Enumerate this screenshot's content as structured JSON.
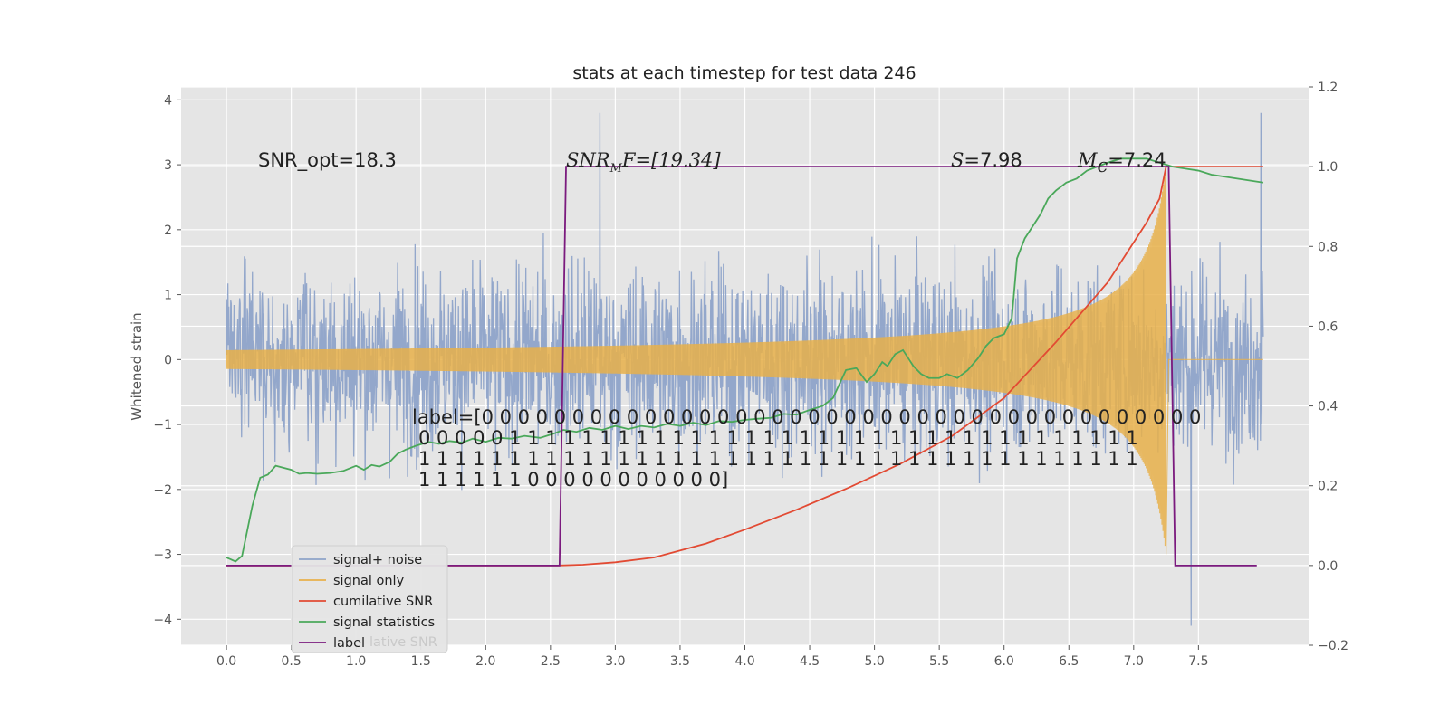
{
  "chart_data": {
    "type": "line",
    "title": "stats at each timestep for test data 246",
    "ylabel": "Whitened strain",
    "xlim": [
      -0.35,
      8.35
    ],
    "ylim_left": [
      -4.4,
      4.2
    ],
    "ylim_right": [
      -0.2,
      1.2
    ],
    "x_ticks": [
      "0.0",
      "0.5",
      "1.0",
      "1.5",
      "2.0",
      "2.5",
      "3.0",
      "3.5",
      "4.0",
      "4.5",
      "5.0",
      "5.5",
      "6.0",
      "6.5",
      "7.0",
      "7.5"
    ],
    "y_ticks_left": [
      "4",
      "3",
      "2",
      "1",
      "0",
      "−1",
      "−2",
      "−3",
      "−4"
    ],
    "y_ticks_right": [
      "1.2",
      "1.0",
      "0.8",
      "0.6",
      "0.4",
      "0.2",
      "0.0",
      "−0.2"
    ],
    "grid": true,
    "legend_position": "lower-left",
    "annotations": {
      "snr_opt": "SNR_opt=18.3",
      "snr_mf": "SNR",
      "snr_mf_sub": "M",
      "snr_mf_rest": "F=[19.34]",
      "s_label": "S",
      "s_value": "=7.98",
      "mc_label": "M",
      "mc_sub": "c",
      "mc_value": "=7.24",
      "label_lines": [
        "label=[0 0 0 0 0 0 0 0 0 0 0 0 0 0 0 0 0 0 0 0 0 0 0 0 0 0 0 0 0 0 0 0 0 0 0 0 0 0 0 0",
        "0 0 0 0 0 1 1 1 1 1 1 1 1 1 1 1 1 1 1 1 1 1 1 1 1 1 1 1 1 1 1 1 1 1 1 1 1 1 1 1",
        "1 1 1 1 1 1 1 1 1 1 1 1 1 1 1 1 1 1 1 1 1 1 1 1 1 1 1 1 1 1 1 1 1 1 1 1 1 1 1 1",
        "1 1 1 1 1 1 0 0 0 0 0 0 0 0 0 0 0]"
      ],
      "legend_ghost": "lative SNR"
    },
    "series": [
      {
        "name": "signal+ noise",
        "color": "#8ea3c9",
        "kind": "noise",
        "x_range": [
          0.0,
          8.0
        ],
        "amplitude": 1.0,
        "peak_max": 3.8,
        "peak_min": -4.1
      },
      {
        "name": "signal only",
        "color": "#e8b04a",
        "kind": "chirp",
        "x_range": [
          0.0,
          7.25
        ],
        "peak_amplitude": 3.0
      },
      {
        "name": "cumilative SNR",
        "color": "#e24a33",
        "axis": "right",
        "x": [
          0.0,
          2.55,
          2.75,
          3.0,
          3.3,
          3.7,
          4.0,
          4.4,
          4.8,
          5.2,
          5.6,
          6.0,
          6.4,
          6.8,
          7.0,
          7.1,
          7.2,
          7.25,
          7.3,
          8.0
        ],
        "y": [
          0.0,
          0.0,
          0.002,
          0.008,
          0.02,
          0.055,
          0.09,
          0.14,
          0.195,
          0.255,
          0.325,
          0.42,
          0.56,
          0.71,
          0.81,
          0.86,
          0.92,
          1.0,
          1.0,
          1.0
        ]
      },
      {
        "name": "signal statistics",
        "color": "#4aa85a",
        "axis": "right",
        "x": [
          0.0,
          0.07,
          0.12,
          0.2,
          0.26,
          0.32,
          0.38,
          0.44,
          0.5,
          0.56,
          0.62,
          0.7,
          0.8,
          0.9,
          1.0,
          1.06,
          1.12,
          1.18,
          1.26,
          1.32,
          1.38,
          1.46,
          1.56,
          1.64,
          1.72,
          1.82,
          1.9,
          2.0,
          2.1,
          2.2,
          2.3,
          2.42,
          2.52,
          2.6,
          2.7,
          2.8,
          2.9,
          3.0,
          3.1,
          3.2,
          3.3,
          3.4,
          3.5,
          3.6,
          3.7,
          3.8,
          3.9,
          4.0,
          4.1,
          4.2,
          4.3,
          4.4,
          4.5,
          4.6,
          4.68,
          4.78,
          4.86,
          4.94,
          5.0,
          5.06,
          5.1,
          5.16,
          5.22,
          5.26,
          5.3,
          5.36,
          5.42,
          5.5,
          5.56,
          5.64,
          5.72,
          5.8,
          5.86,
          5.92,
          6.0,
          6.06,
          6.1,
          6.16,
          6.22,
          6.28,
          6.34,
          6.4,
          6.48,
          6.56,
          6.64,
          6.72,
          6.8,
          6.9,
          7.0,
          7.1,
          7.2,
          7.3,
          7.4,
          7.5,
          7.6,
          7.8,
          8.0
        ],
        "y": [
          0.02,
          0.01,
          0.024,
          0.15,
          0.22,
          0.228,
          0.25,
          0.245,
          0.24,
          0.23,
          0.232,
          0.23,
          0.232,
          0.237,
          0.25,
          0.24,
          0.252,
          0.248,
          0.26,
          0.28,
          0.29,
          0.3,
          0.31,
          0.305,
          0.312,
          0.308,
          0.318,
          0.31,
          0.32,
          0.318,
          0.325,
          0.32,
          0.33,
          0.34,
          0.335,
          0.345,
          0.34,
          0.35,
          0.342,
          0.35,
          0.346,
          0.355,
          0.35,
          0.358,
          0.352,
          0.362,
          0.36,
          0.365,
          0.368,
          0.37,
          0.38,
          0.378,
          0.39,
          0.4,
          0.42,
          0.49,
          0.495,
          0.46,
          0.48,
          0.51,
          0.5,
          0.53,
          0.54,
          0.52,
          0.5,
          0.48,
          0.47,
          0.47,
          0.48,
          0.47,
          0.49,
          0.52,
          0.55,
          0.57,
          0.58,
          0.62,
          0.77,
          0.82,
          0.85,
          0.88,
          0.92,
          0.94,
          0.96,
          0.97,
          0.99,
          1.0,
          1.01,
          1.02,
          1.02,
          1.02,
          1.01,
          1.0,
          0.995,
          0.99,
          0.98,
          0.97,
          0.96
        ]
      },
      {
        "name": "label",
        "color": "#7b1a7e",
        "axis": "right",
        "x": [
          0.0,
          2.57,
          2.62,
          7.27,
          7.32,
          7.95
        ],
        "y": [
          0.0,
          0.0,
          1.0,
          1.0,
          0.0,
          0.0
        ]
      }
    ]
  }
}
